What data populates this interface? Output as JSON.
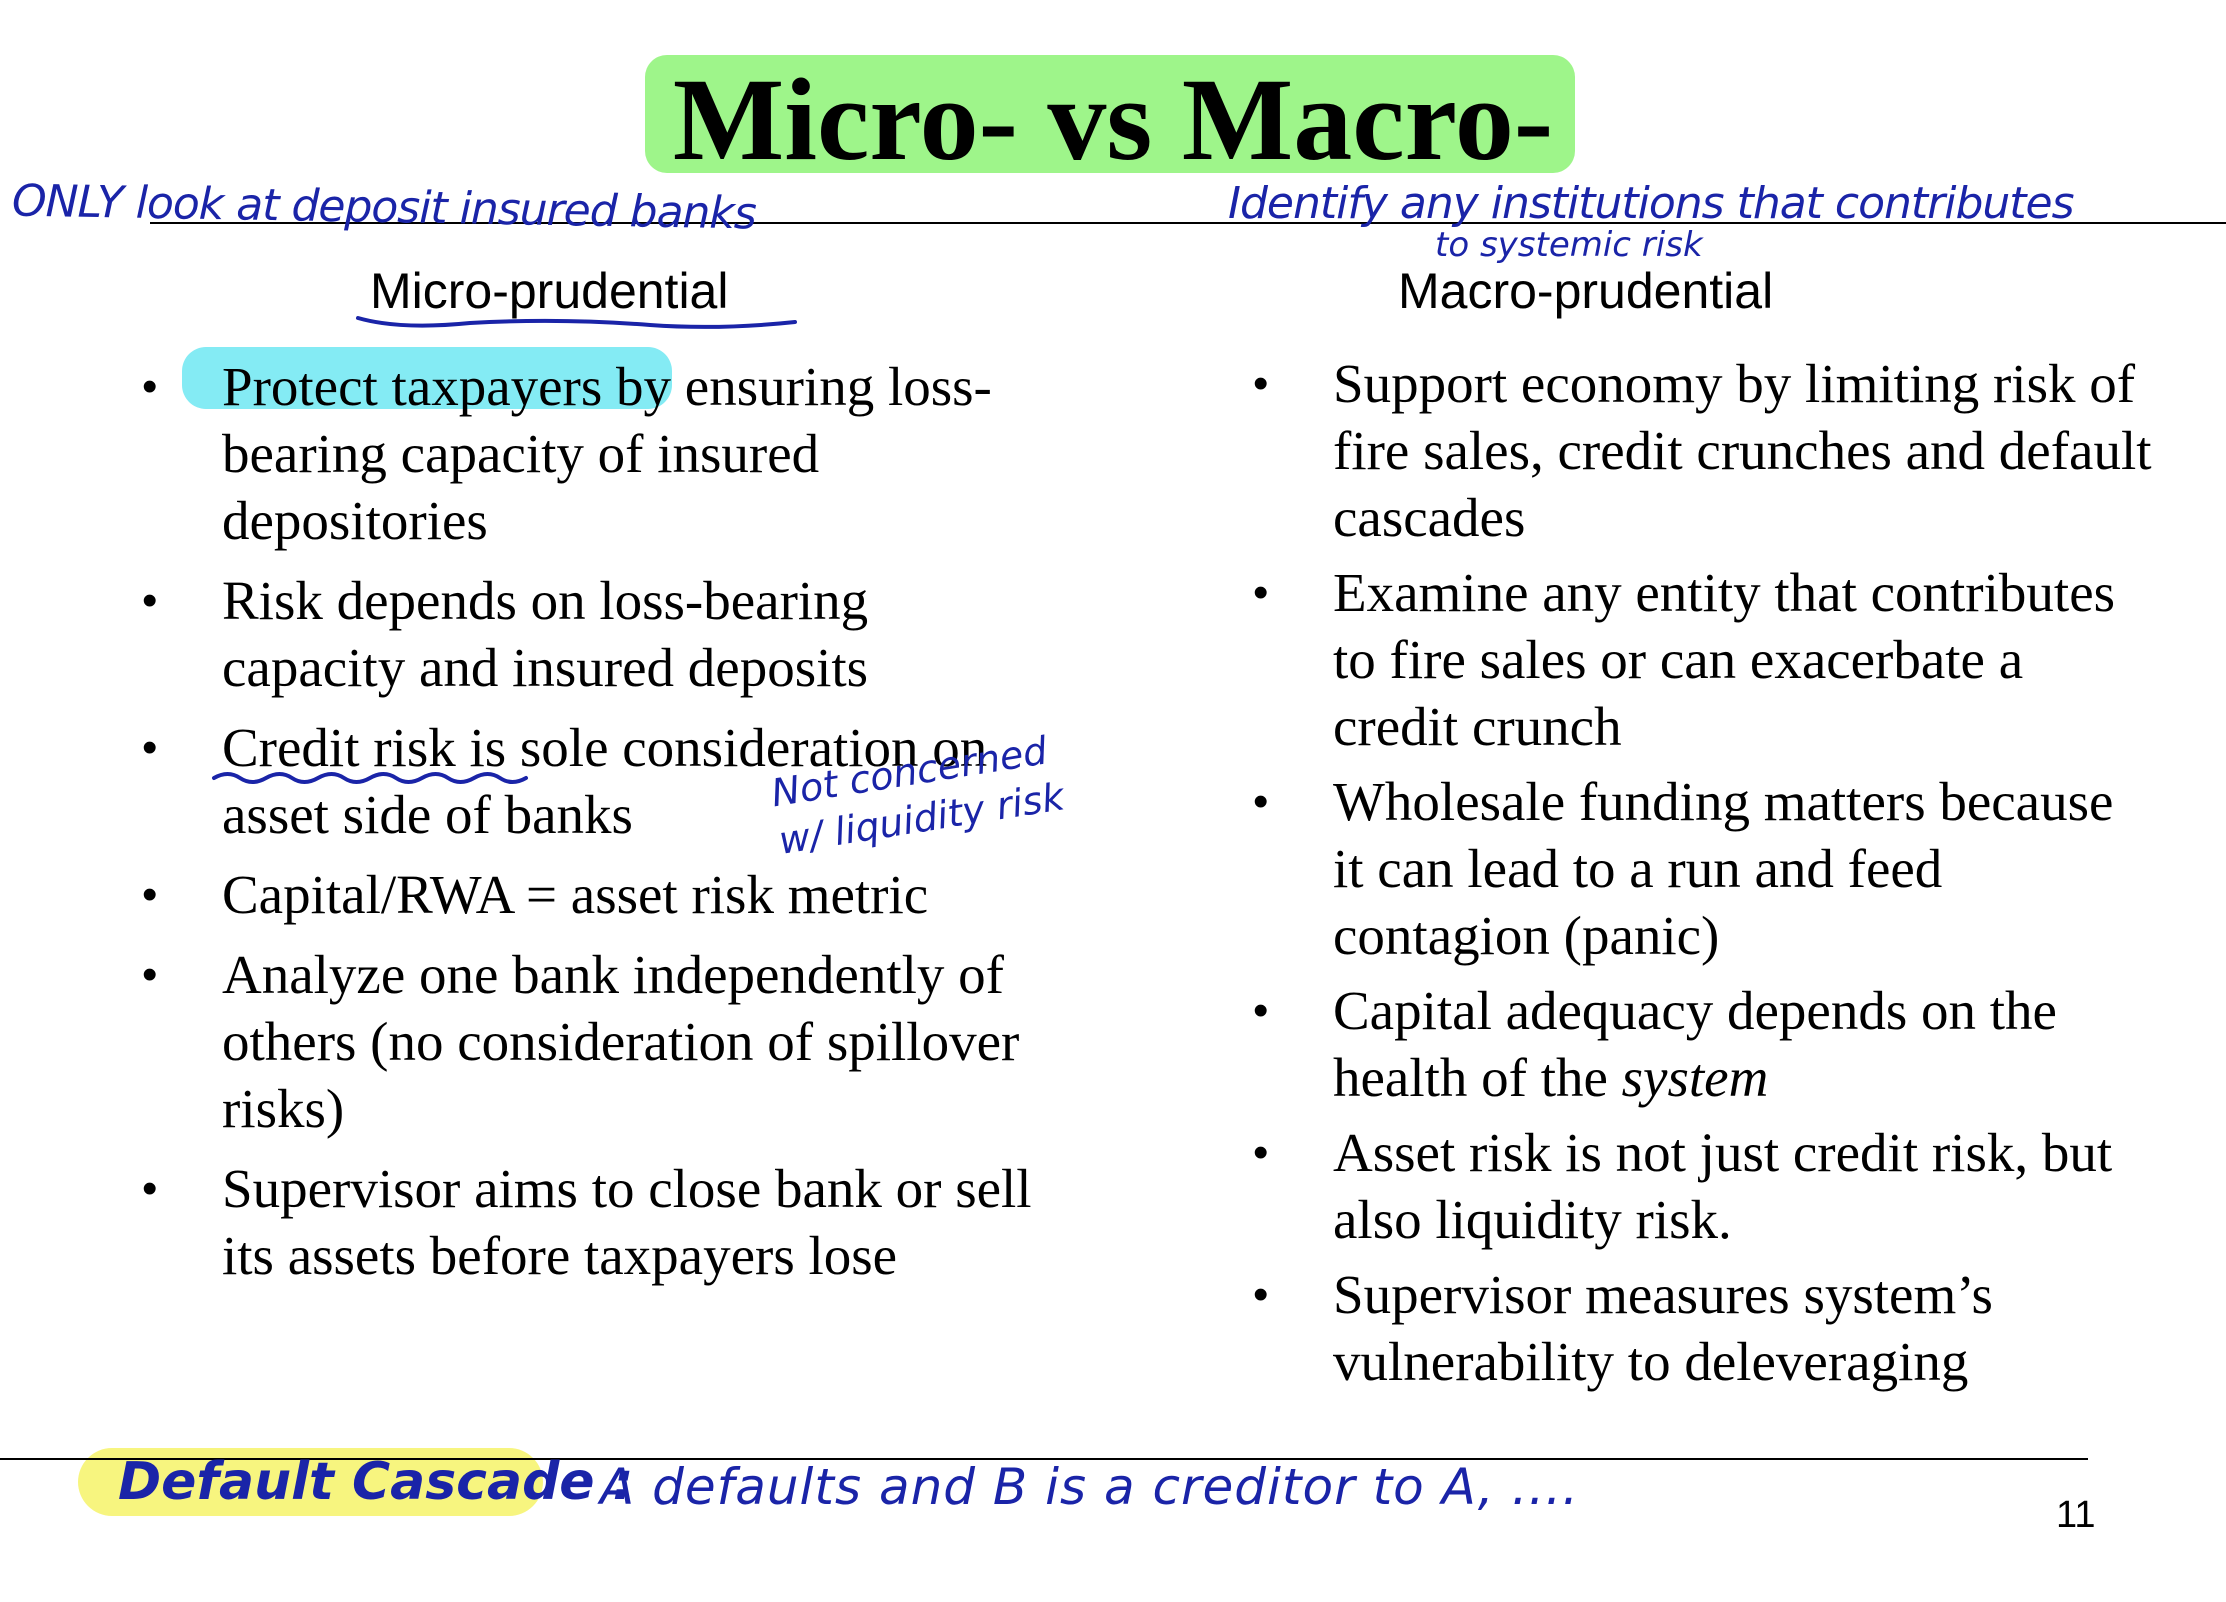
{
  "title": "Micro- vs Macro-",
  "micro": {
    "heading": "Micro-prudential",
    "bullets": [
      {
        "highlighted": "Protect taxpayers",
        "rest": " by ensuring loss-bearing capacity of insured depositories"
      },
      {
        "text": "Risk depends on loss-bearing capacity and insured deposits"
      },
      {
        "text": "Credit risk is sole consideration on asset side of banks"
      },
      {
        "text": "Capital/RWA = asset risk metric"
      },
      {
        "text": "Analyze one bank independently of others (no consideration of spillover risks)"
      },
      {
        "text": "Supervisor aims to close bank or sell its assets before taxpayers lose"
      }
    ]
  },
  "macro": {
    "heading": "Macro-prudential",
    "bullets": [
      {
        "text": "Support economy by limiting risk of fire sales, credit crunches and default cascades"
      },
      {
        "text": "Examine any entity that contributes to fire sales or can exacerbate a credit crunch"
      },
      {
        "text": "Wholesale funding matters because it can lead to a run and feed contagion (panic)"
      },
      {
        "text": "Capital adequacy depends on the health of the ",
        "italic": "system"
      },
      {
        "text": "Asset risk is not just credit risk, but also liquidity risk."
      },
      {
        "text": "Supervisor measures system’s vulnerability to deleveraging"
      }
    ]
  },
  "bullet_glyph": "•",
  "page_number": "11",
  "handwritten": {
    "only_insured": "ONLY look at deposit insured banks",
    "identify_line1": "Identify any institutions that contributes",
    "identify_line2": "to systemic risk",
    "not_concerned_line1": "Not concerned",
    "not_concerned_line2": "w/ liquidity risk",
    "cascade_label": "Default Cascade :",
    "cascade_text": "A defaults and B is a creditor to A, ...."
  },
  "colors": {
    "ink": "#1a24a8",
    "title_highlight": "#9ef58a",
    "taxpayers_highlight": "#6fe8f2",
    "cascade_highlight": "#f7f57f"
  }
}
